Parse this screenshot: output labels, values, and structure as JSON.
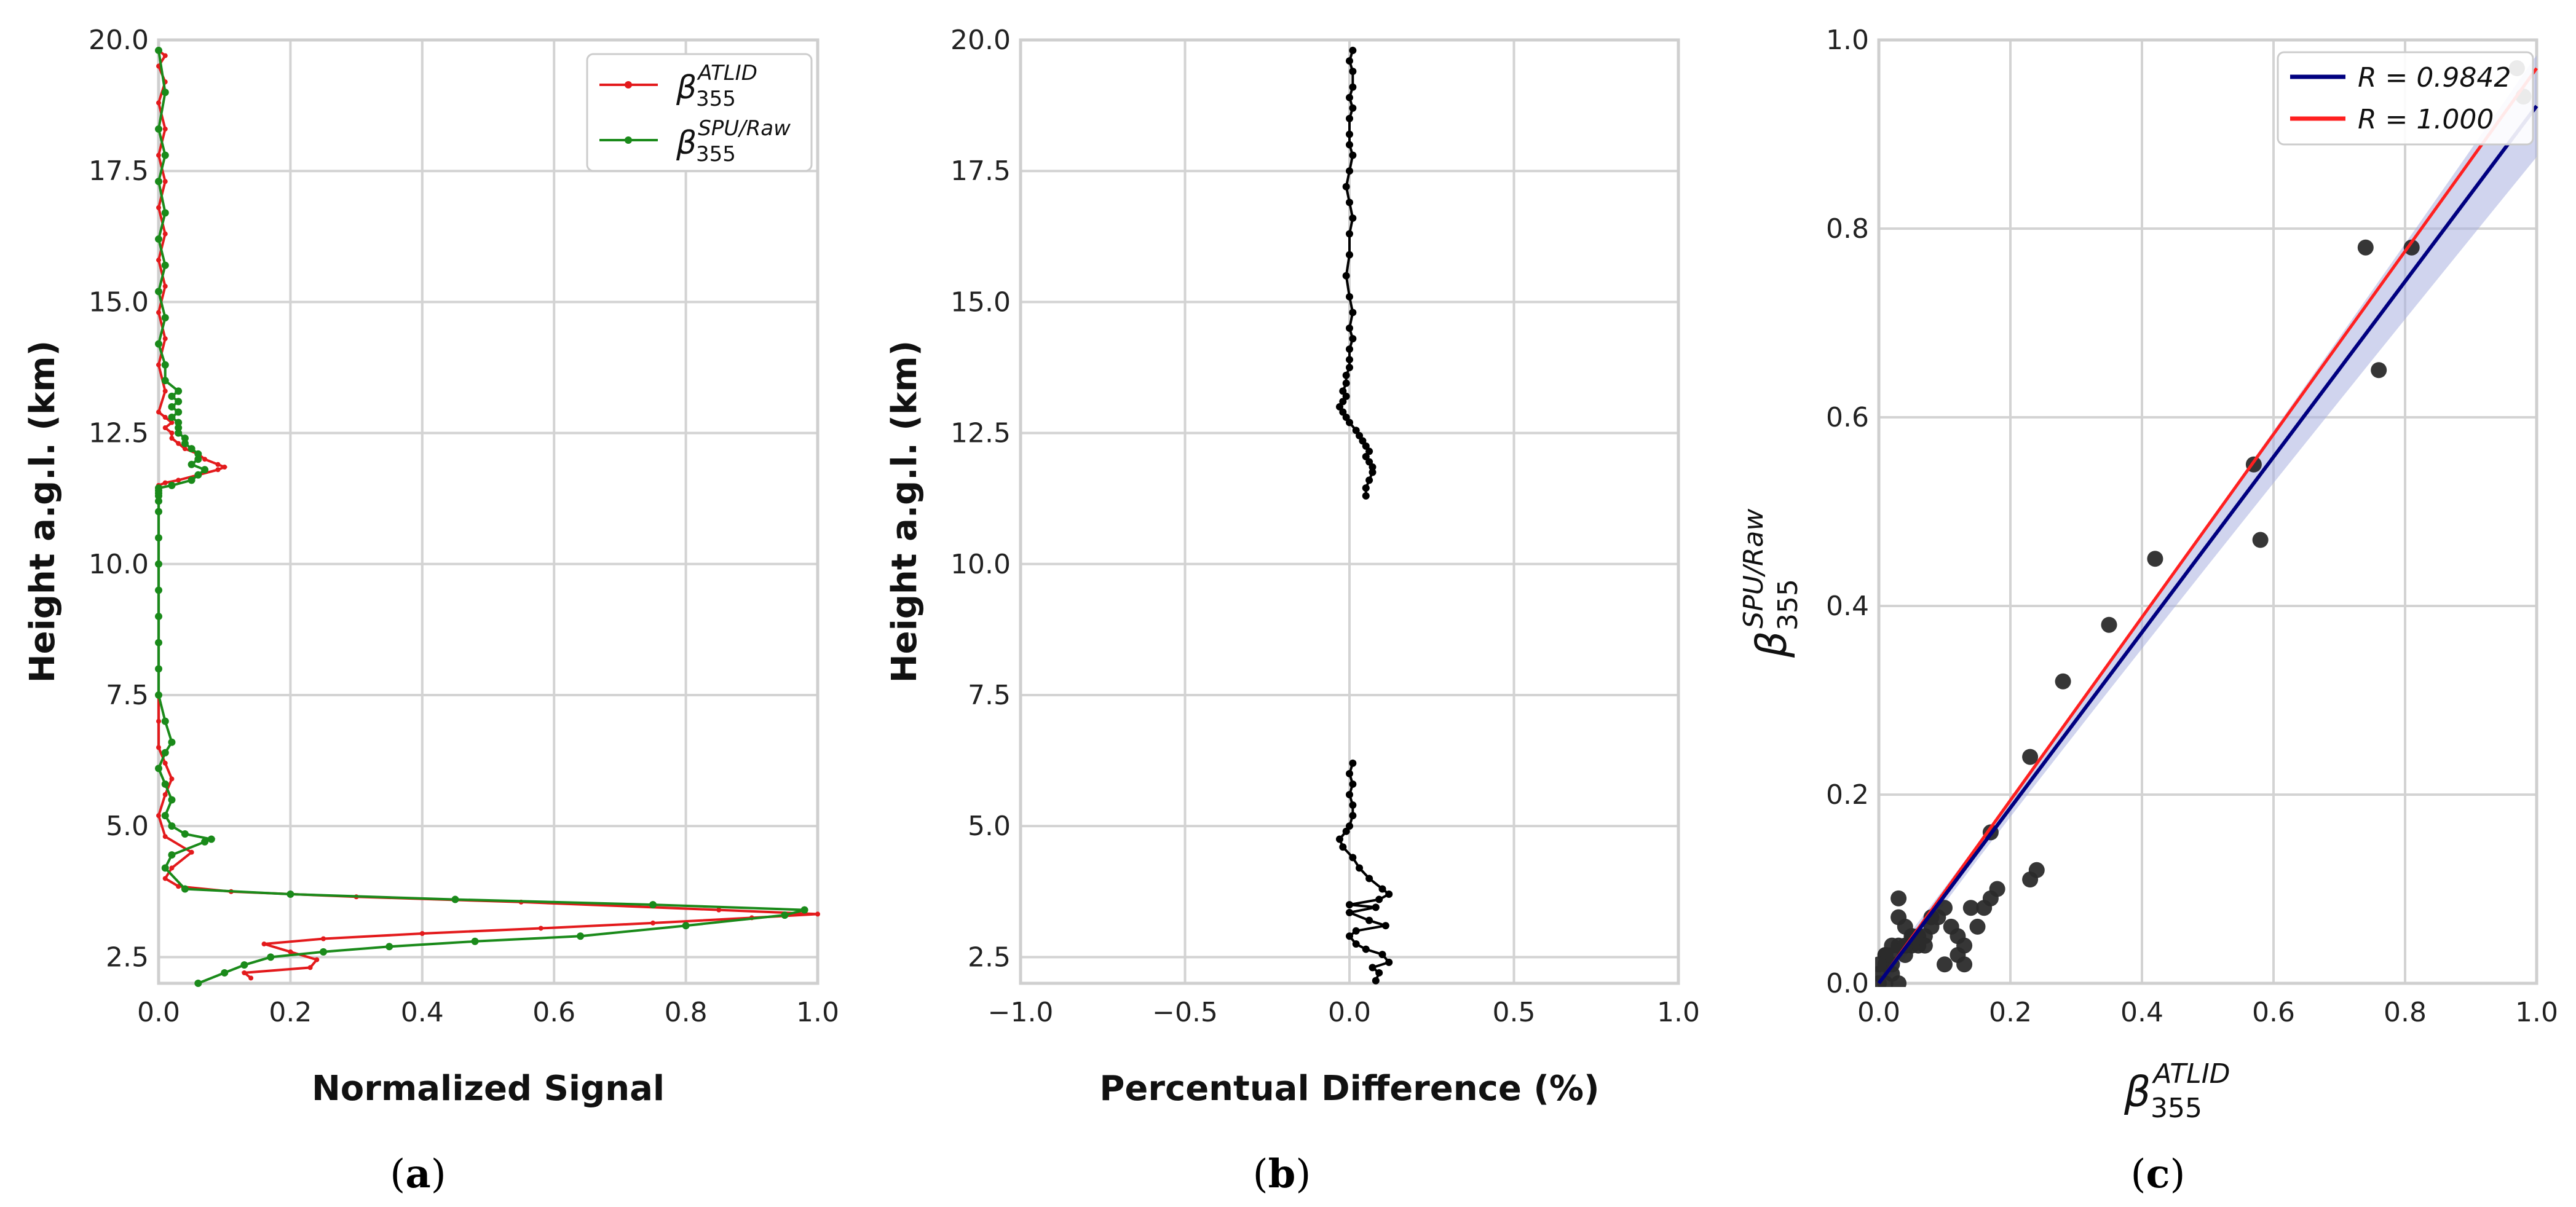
{
  "colors": {
    "atlid": "#e31a1c",
    "spu": "#1a8a1a",
    "diff": "#000000",
    "regression": "#000080",
    "identity": "#ff2020",
    "ci_band": "#aab0e0",
    "scatter": "#2b2b2b"
  },
  "captions": {
    "a": "a",
    "b": "b",
    "c": "c"
  },
  "chart_data": [
    {
      "id": "a",
      "type": "line",
      "xlabel": "Normalized Signal",
      "ylabel": "Height a.g.l. (km)",
      "xlim": [
        0,
        1
      ],
      "ylim": [
        2,
        20
      ],
      "xticks": [
        "0.0",
        "0.2",
        "0.4",
        "0.6",
        "0.8",
        "1.0"
      ],
      "xtick_values": [
        0,
        0.2,
        0.4,
        0.6,
        0.8,
        1.0
      ],
      "yticks": [
        "2.5",
        "5.0",
        "7.5",
        "10.0",
        "12.5",
        "15.0",
        "17.5",
        "20.0"
      ],
      "ytick_values": [
        2.5,
        5,
        7.5,
        10,
        12.5,
        15,
        17.5,
        20
      ],
      "legend": {
        "placement": "top-right",
        "entries": [
          {
            "symbol": "β",
            "sub": "355",
            "sup": "ATLID",
            "series": "atlid"
          },
          {
            "symbol": "β",
            "sub": "355",
            "sup": "SPU/Raw",
            "series": "spu"
          }
        ]
      },
      "series": [
        {
          "key": "atlid",
          "name": "β355 ATLID",
          "x": [
            0.14,
            0.13,
            0.23,
            0.24,
            0.2,
            0.16,
            0.25,
            0.4,
            0.58,
            0.75,
            0.9,
            1.0,
            0.85,
            0.55,
            0.3,
            0.11,
            0.03,
            0.01,
            0.02,
            0.05,
            0.01,
            0.0,
            0.01,
            0.02,
            0.01,
            0.0,
            0.0,
            0.0,
            0.0,
            0.0,
            0.0,
            0.0,
            0.0,
            0.0,
            0.0,
            0.0,
            0.0,
            0.0,
            0.0,
            0.0,
            0.0,
            0.01,
            0.03,
            0.06,
            0.09,
            0.1,
            0.09,
            0.07,
            0.06,
            0.04,
            0.03,
            0.02,
            0.02,
            0.01,
            0.02,
            0.01,
            0.0,
            0.01,
            0.0,
            0.01,
            0.0,
            0.01,
            0.0,
            0.01,
            0.0,
            0.01,
            0.0,
            0.01,
            0.0,
            0.01,
            0.0,
            0.01,
            0.0
          ],
          "y": [
            2.1,
            2.2,
            2.3,
            2.45,
            2.6,
            2.75,
            2.85,
            2.95,
            3.05,
            3.15,
            3.25,
            3.32,
            3.4,
            3.55,
            3.65,
            3.75,
            3.85,
            4.0,
            4.2,
            4.5,
            4.8,
            5.2,
            5.6,
            5.9,
            6.2,
            6.5,
            7.0,
            7.5,
            8.0,
            8.5,
            9.0,
            9.5,
            10.0,
            10.5,
            11.0,
            11.2,
            11.3,
            11.35,
            11.4,
            11.45,
            11.5,
            11.55,
            11.6,
            11.7,
            11.8,
            11.85,
            11.9,
            12.0,
            12.1,
            12.2,
            12.3,
            12.4,
            12.5,
            12.6,
            12.7,
            12.8,
            12.9,
            13.3,
            13.8,
            14.3,
            14.8,
            15.3,
            15.8,
            16.3,
            16.8,
            17.3,
            17.8,
            18.3,
            18.8,
            19.2,
            19.5,
            19.7,
            19.8
          ]
        },
        {
          "key": "spu",
          "name": "β355 SPU/Raw",
          "x": [
            0.06,
            0.1,
            0.13,
            0.17,
            0.25,
            0.35,
            0.48,
            0.64,
            0.8,
            0.95,
            0.98,
            0.75,
            0.45,
            0.2,
            0.04,
            0.01,
            0.02,
            0.07,
            0.08,
            0.04,
            0.02,
            0.01,
            0.02,
            0.01,
            0.0,
            0.01,
            0.02,
            0.01,
            0.0,
            0.0,
            0.0,
            0.0,
            0.0,
            0.0,
            0.0,
            0.0,
            0.0,
            0.0,
            0.0,
            0.0,
            0.0,
            0.02,
            0.05,
            0.06,
            0.07,
            0.05,
            0.06,
            0.06,
            0.05,
            0.04,
            0.04,
            0.03,
            0.03,
            0.03,
            0.02,
            0.03,
            0.02,
            0.03,
            0.02,
            0.03,
            0.01,
            0.01,
            0.0,
            0.01,
            0.0,
            0.01,
            0.0,
            0.01,
            0.0,
            0.01,
            0.0,
            0.01,
            0.0
          ],
          "y": [
            2.0,
            2.2,
            2.35,
            2.5,
            2.6,
            2.7,
            2.8,
            2.9,
            3.1,
            3.3,
            3.4,
            3.5,
            3.6,
            3.7,
            3.8,
            4.2,
            4.45,
            4.7,
            4.75,
            4.85,
            5.0,
            5.2,
            5.5,
            5.8,
            6.1,
            6.4,
            6.6,
            7.0,
            7.5,
            8.0,
            8.5,
            9.0,
            9.5,
            10.0,
            10.5,
            11.0,
            11.2,
            11.3,
            11.35,
            11.4,
            11.45,
            11.5,
            11.6,
            11.7,
            11.8,
            11.9,
            12.0,
            12.1,
            12.2,
            12.3,
            12.4,
            12.5,
            12.6,
            12.7,
            12.8,
            12.9,
            13.0,
            13.1,
            13.2,
            13.3,
            13.5,
            13.8,
            14.2,
            14.7,
            15.2,
            15.7,
            16.2,
            16.7,
            17.3,
            17.8,
            18.3,
            19.0,
            19.8
          ]
        }
      ]
    },
    {
      "id": "b",
      "type": "line",
      "xlabel": "Percentual Difference (%)",
      "ylabel": "Height a.g.l. (km)",
      "xlim": [
        -1,
        1
      ],
      "ylim": [
        2,
        20
      ],
      "xticks": [
        "−1.0",
        "−0.5",
        "0.0",
        "0.5",
        "1.0"
      ],
      "xtick_values": [
        -1,
        -0.5,
        0,
        0.5,
        1
      ],
      "yticks": [
        "2.5",
        "5.0",
        "7.5",
        "10.0",
        "12.5",
        "15.0",
        "17.5",
        "20.0"
      ],
      "ytick_values": [
        2.5,
        5,
        7.5,
        10,
        12.5,
        15,
        17.5,
        20
      ],
      "series": [
        {
          "key": "diff",
          "name": "Percentual Difference",
          "x": [
            0.08,
            0.09,
            0.07,
            0.12,
            0.1,
            0.05,
            0.02,
            0.0,
            0.02,
            0.11,
            0.06,
            0.0,
            0.08,
            0.0,
            0.09,
            0.12,
            0.1,
            0.06,
            0.03,
            0.01,
            -0.02,
            -0.03,
            -0.01,
            0.0,
            0.01,
            0.01,
            0.0,
            0.01,
            0.0,
            0.01
          ],
          "y": [
            2.05,
            2.2,
            2.3,
            2.4,
            2.55,
            2.65,
            2.75,
            2.9,
            3.0,
            3.1,
            3.2,
            3.35,
            3.45,
            3.5,
            3.6,
            3.7,
            3.8,
            4.0,
            4.2,
            4.4,
            4.6,
            4.75,
            4.9,
            5.0,
            5.2,
            5.4,
            5.6,
            5.8,
            6.0,
            6.2
          ]
        },
        {
          "key": "diff2",
          "name": "Percentual Difference upper",
          "x": [
            0.05,
            0.05,
            0.06,
            0.07,
            0.07,
            0.06,
            0.05,
            0.06,
            0.05,
            0.04,
            0.03,
            0.02,
            0.0,
            -0.01,
            -0.02,
            -0.03,
            -0.02,
            -0.01,
            -0.02,
            -0.01,
            -0.01,
            0.0,
            0.0,
            0.0,
            0.01,
            0.0,
            0.01,
            0.0,
            -0.01,
            0.0,
            0.0,
            0.01,
            0.0,
            -0.01,
            0.0,
            0.01,
            0.0,
            0.0,
            0.0,
            0.01,
            0.0,
            0.01,
            0.01,
            0.0,
            0.01
          ],
          "y": [
            11.3,
            11.45,
            11.6,
            11.75,
            11.85,
            11.95,
            12.05,
            12.15,
            12.25,
            12.35,
            12.45,
            12.55,
            12.7,
            12.8,
            12.9,
            13.0,
            13.1,
            13.2,
            13.3,
            13.45,
            13.6,
            13.75,
            13.9,
            14.1,
            14.3,
            14.5,
            14.8,
            15.1,
            15.5,
            15.9,
            16.3,
            16.6,
            16.9,
            17.2,
            17.5,
            17.8,
            18.0,
            18.2,
            18.5,
            18.7,
            18.9,
            19.1,
            19.4,
            19.6,
            19.8
          ]
        }
      ]
    },
    {
      "id": "c",
      "type": "scatter",
      "xlabel_sym": "β",
      "xlabel_sub": "355",
      "xlabel_sup": "ATLID",
      "ylabel_sym": "β",
      "ylabel_sub": "355",
      "ylabel_sup": "SPU/Raw",
      "xlim": [
        0,
        1
      ],
      "ylim": [
        0,
        1
      ],
      "xticks": [
        "0.0",
        "0.2",
        "0.4",
        "0.6",
        "0.8",
        "1.0"
      ],
      "xtick_values": [
        0,
        0.2,
        0.4,
        0.6,
        0.8,
        1.0
      ],
      "yticks": [
        "0.0",
        "0.2",
        "0.4",
        "0.6",
        "0.8",
        "1.0"
      ],
      "ytick_values": [
        0,
        0.2,
        0.4,
        0.6,
        0.8,
        1.0
      ],
      "legend": {
        "placement": "top-right",
        "entries": [
          {
            "label": "R = 0.9842",
            "series": "regression"
          },
          {
            "label": "R = 1.000",
            "series": "identity"
          }
        ]
      },
      "regression": {
        "slope": 0.93,
        "intercept": 0.0,
        "label": "R = 0.9842"
      },
      "identity": {
        "slope": 0.97,
        "intercept": 0.0,
        "label": "R = 1.000"
      },
      "points": {
        "x": [
          0.97,
          0.98,
          0.81,
          0.74,
          0.76,
          0.57,
          0.58,
          0.42,
          0.35,
          0.28,
          0.23,
          0.24,
          0.23,
          0.17,
          0.18,
          0.17,
          0.16,
          0.15,
          0.14,
          0.13,
          0.13,
          0.12,
          0.1,
          0.09,
          0.1,
          0.08,
          0.08,
          0.07,
          0.06,
          0.07,
          0.06,
          0.05,
          0.05,
          0.04,
          0.04,
          0.03,
          0.03,
          0.02,
          0.03,
          0.02,
          0.01,
          0.01,
          0.0,
          0.0,
          0.01,
          0.02,
          0.03,
          0.02,
          0.01,
          0.0,
          0.04,
          0.05,
          0.12,
          0.11
        ],
        "y": [
          0.97,
          0.94,
          0.78,
          0.78,
          0.65,
          0.55,
          0.47,
          0.45,
          0.38,
          0.32,
          0.24,
          0.12,
          0.11,
          0.16,
          0.1,
          0.09,
          0.08,
          0.06,
          0.08,
          0.04,
          0.02,
          0.03,
          0.02,
          0.07,
          0.08,
          0.07,
          0.06,
          0.05,
          0.05,
          0.04,
          0.04,
          0.05,
          0.04,
          0.03,
          0.06,
          0.09,
          0.07,
          0.03,
          0.04,
          0.02,
          0.03,
          0.02,
          0.01,
          0.0,
          0.0,
          0.01,
          0.0,
          0.04,
          0.03,
          0.02,
          0.04,
          0.05,
          0.05,
          0.06
        ]
      }
    }
  ]
}
